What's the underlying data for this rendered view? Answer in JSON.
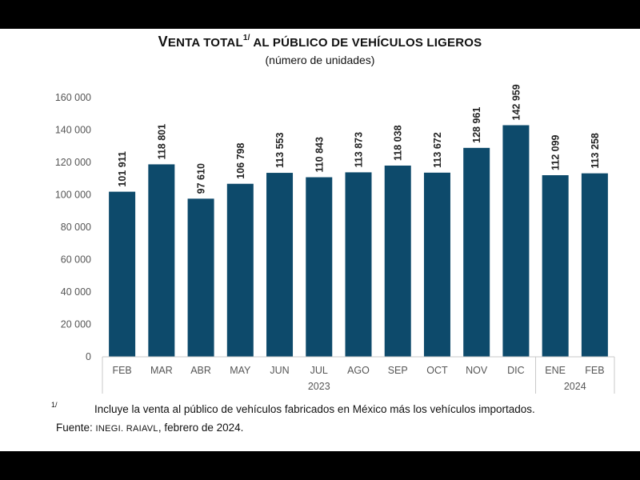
{
  "title": {
    "first_letter": "V",
    "rest_part1": "ENTA TOTAL",
    "footnote_ref": "1/",
    "rest_part2": " AL PÚBLICO DE VEHÍCULOS LIGEROS",
    "subtitle": "(número de unidades)"
  },
  "footnote": {
    "mark": "1/",
    "text": "Incluye la venta al público de vehículos fabricados en México más los vehículos importados."
  },
  "source": {
    "label": "Fuente:",
    "institutions": "INEGI. RAIAVL",
    "date": ", febrero de 2024."
  },
  "colors": {
    "bar": "#0d4a6b",
    "axis": "#c8c8c8",
    "text": "#555555"
  },
  "chart_data": {
    "type": "bar",
    "title": "VENTA TOTAL 1/ AL PÚBLICO DE VEHÍCULOS LIGEROS",
    "subtitle": "(número de unidades)",
    "categories": [
      "FEB",
      "MAR",
      "ABR",
      "MAY",
      "JUN",
      "JUL",
      "AGO",
      "SEP",
      "OCT",
      "NOV",
      "DIC",
      "ENE",
      "FEB"
    ],
    "values": [
      101911,
      118801,
      97610,
      106798,
      113553,
      110843,
      113873,
      118038,
      113672,
      128961,
      142959,
      112099,
      113258
    ],
    "data_labels": [
      "101 911",
      "118 801",
      "97 610",
      "106 798",
      "113 553",
      "110 843",
      "113 873",
      "118 038",
      "113 672",
      "128 961",
      "142 959",
      "112 099",
      "113 258"
    ],
    "groups": [
      {
        "label": "2023",
        "start": 0,
        "end": 10
      },
      {
        "label": "2024",
        "start": 11,
        "end": 12
      }
    ],
    "ylim": [
      0,
      160000
    ],
    "yticks": [
      0,
      20000,
      40000,
      60000,
      80000,
      100000,
      120000,
      140000,
      160000
    ],
    "ytick_labels": [
      "0",
      "20 000",
      "40 000",
      "60 000",
      "80 000",
      "100 000",
      "120 000",
      "140 000",
      "160 000"
    ],
    "xlabel": "",
    "ylabel": "",
    "grid": false,
    "legend": "none"
  }
}
